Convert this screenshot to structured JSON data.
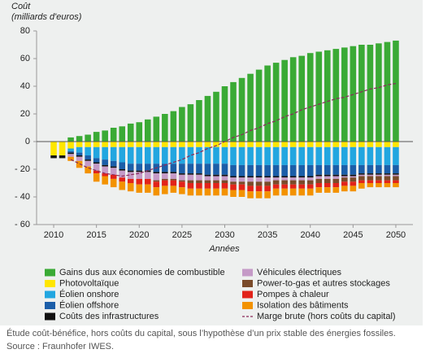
{
  "chart_data": {
    "type": "stacked-bar",
    "ylabel": "Coût",
    "ylabel_unit": "(milliards d'euros)",
    "xlabel": "Années",
    "x": [
      2010,
      2011,
      2012,
      2013,
      2014,
      2015,
      2016,
      2017,
      2018,
      2019,
      2020,
      2021,
      2022,
      2023,
      2024,
      2025,
      2026,
      2027,
      2028,
      2029,
      2030,
      2031,
      2032,
      2033,
      2034,
      2035,
      2036,
      2037,
      2038,
      2039,
      2040,
      2041,
      2042,
      2043,
      2044,
      2045,
      2046,
      2047,
      2048,
      2049,
      2050
    ],
    "xlim": [
      2008,
      2052
    ],
    "xticks": [
      2010,
      2015,
      2020,
      2025,
      2030,
      2035,
      2040,
      2045,
      2050
    ],
    "ylim": [
      -60,
      80
    ],
    "yticks": [
      80,
      60,
      40,
      20,
      0,
      {
        "value": -20,
        "label": "- 20"
      },
      {
        "value": -40,
        "label": "- 40"
      },
      {
        "value": -60,
        "label": "- 60"
      }
    ],
    "series": [
      {
        "name": "Gains dus aux économies de combustible",
        "color": "#3aaa35",
        "values": [
          0,
          0,
          3,
          4,
          5,
          7,
          8,
          10,
          11,
          13,
          14,
          16,
          18,
          20,
          22,
          25,
          27,
          30,
          33,
          36,
          40,
          43,
          46,
          49,
          52,
          55,
          57,
          59,
          61,
          62,
          64,
          65,
          66,
          67,
          68,
          69,
          70,
          70,
          71,
          72,
          73
        ]
      },
      {
        "name": "Photovoltaïque",
        "color": "#ffe600",
        "values": [
          -10,
          -10,
          -5,
          -4,
          -4,
          -4,
          -4,
          -4,
          -4,
          -4,
          -4,
          -4,
          -4,
          -4,
          -4,
          -4,
          -4,
          -4,
          -4,
          -4,
          -4,
          -4,
          -4,
          -4,
          -4,
          -4,
          -4,
          -4,
          -4,
          -4,
          -4,
          -4,
          -4,
          -4,
          -4,
          -4,
          -4,
          -4,
          -4,
          -4,
          -4
        ]
      },
      {
        "name": "Éolien onshore",
        "color": "#22a6e0",
        "values": [
          0,
          0,
          -2,
          -4,
          -6,
          -8,
          -9,
          -10,
          -11,
          -12,
          -12,
          -12,
          -12,
          -12,
          -12,
          -12,
          -12,
          -12,
          -12,
          -12,
          -12,
          -13,
          -13,
          -13,
          -13,
          -13,
          -13,
          -13,
          -13,
          -13,
          -13,
          -13,
          -13,
          -13,
          -13,
          -13,
          -13,
          -13,
          -13,
          -13,
          -13
        ]
      },
      {
        "name": "Éolien offshore",
        "color": "#1b5ea8",
        "values": [
          0,
          0,
          -1,
          -2,
          -3,
          -3,
          -4,
          -4,
          -5,
          -5,
          -5,
          -5,
          -6,
          -6,
          -6,
          -7,
          -7,
          -7,
          -8,
          -8,
          -8,
          -8,
          -8,
          -8,
          -8,
          -8,
          -8,
          -8,
          -8,
          -8,
          -8,
          -7,
          -7,
          -7,
          -7,
          -7,
          -6,
          -6,
          -6,
          -6,
          -6
        ]
      },
      {
        "name": "Coûts des infrastructures",
        "color": "#111111",
        "values": [
          -2,
          -2,
          -1,
          -1,
          -1,
          -1,
          -1,
          -1,
          -1,
          -1,
          -1,
          -1,
          -1,
          -1,
          -1,
          -1,
          -1,
          -1,
          -1,
          -1,
          -1,
          -1,
          -1,
          -1,
          -1,
          -1,
          -1,
          -1,
          -1,
          -1,
          -1,
          -1,
          -1,
          -1,
          -1,
          -1,
          -1,
          -1,
          -1,
          -1,
          -1
        ]
      },
      {
        "name": "Véhicules électriques",
        "color": "#c59ac7",
        "values": [
          0,
          0,
          -2,
          -3,
          -4,
          -5,
          -5,
          -5,
          -5,
          -5,
          -5,
          -5,
          -5,
          -4,
          -4,
          -4,
          -4,
          -4,
          -3,
          -3,
          -3,
          -3,
          -3,
          -3,
          -3,
          -3,
          -2,
          -2,
          -2,
          -2,
          -2,
          -2,
          -2,
          -2,
          -1,
          -1,
          -1,
          -1,
          -1,
          -1,
          -1
        ]
      },
      {
        "name": "Power-to-gas et autres stockages",
        "color": "#7a4b2a",
        "values": [
          0,
          0,
          0,
          0,
          0,
          0,
          0,
          0,
          0,
          0,
          0,
          0,
          -1,
          -1,
          -1,
          -1,
          -2,
          -2,
          -2,
          -2,
          -2,
          -2,
          -2,
          -3,
          -3,
          -3,
          -3,
          -3,
          -3,
          -3,
          -3,
          -3,
          -3,
          -3,
          -3,
          -3,
          -3,
          -3,
          -3,
          -3,
          -3
        ]
      },
      {
        "name": "Pompes à chaleur",
        "color": "#e2231a",
        "values": [
          0,
          0,
          0,
          0,
          0,
          -2,
          -2,
          -3,
          -3,
          -3,
          -4,
          -4,
          -4,
          -4,
          -4,
          -4,
          -4,
          -4,
          -4,
          -4,
          -4,
          -4,
          -4,
          -4,
          -4,
          -4,
          -3,
          -3,
          -3,
          -3,
          -3,
          -3,
          -3,
          -3,
          -3,
          -3,
          -2,
          -2,
          -2,
          -2,
          -2
        ]
      },
      {
        "name": "Isolation des bâtiments",
        "color": "#f39200",
        "values": [
          0,
          0,
          -3,
          -5,
          -5,
          -6,
          -6,
          -6,
          -6,
          -6,
          -6,
          -6,
          -6,
          -6,
          -5,
          -5,
          -5,
          -5,
          -5,
          -5,
          -5,
          -5,
          -5,
          -5,
          -5,
          -5,
          -5,
          -5,
          -5,
          -5,
          -5,
          -4,
          -4,
          -4,
          -4,
          -4,
          -4,
          -3,
          -3,
          -3,
          -3
        ]
      },
      {
        "name": "Marge brute (hors coûts du capital)",
        "color": "#8b2a5b",
        "type": "line",
        "dashed": true,
        "values": [
          null,
          null,
          -13,
          -16,
          -19,
          -21,
          -23,
          -24,
          -25,
          -24,
          -23,
          -21,
          -19,
          -17,
          -15,
          -13,
          -10,
          -8,
          -5,
          -3,
          0,
          3,
          5,
          8,
          10,
          13,
          15,
          18,
          20,
          23,
          25,
          27,
          29,
          31,
          32,
          34,
          36,
          38,
          39,
          41,
          42
        ]
      }
    ]
  },
  "caption": [
    "Étude coût-bénéfice, hors coûts du capital, sous l’hypothèse d’un prix stable des énergies fossiles.",
    "Source : Fraunhofer IWES."
  ]
}
